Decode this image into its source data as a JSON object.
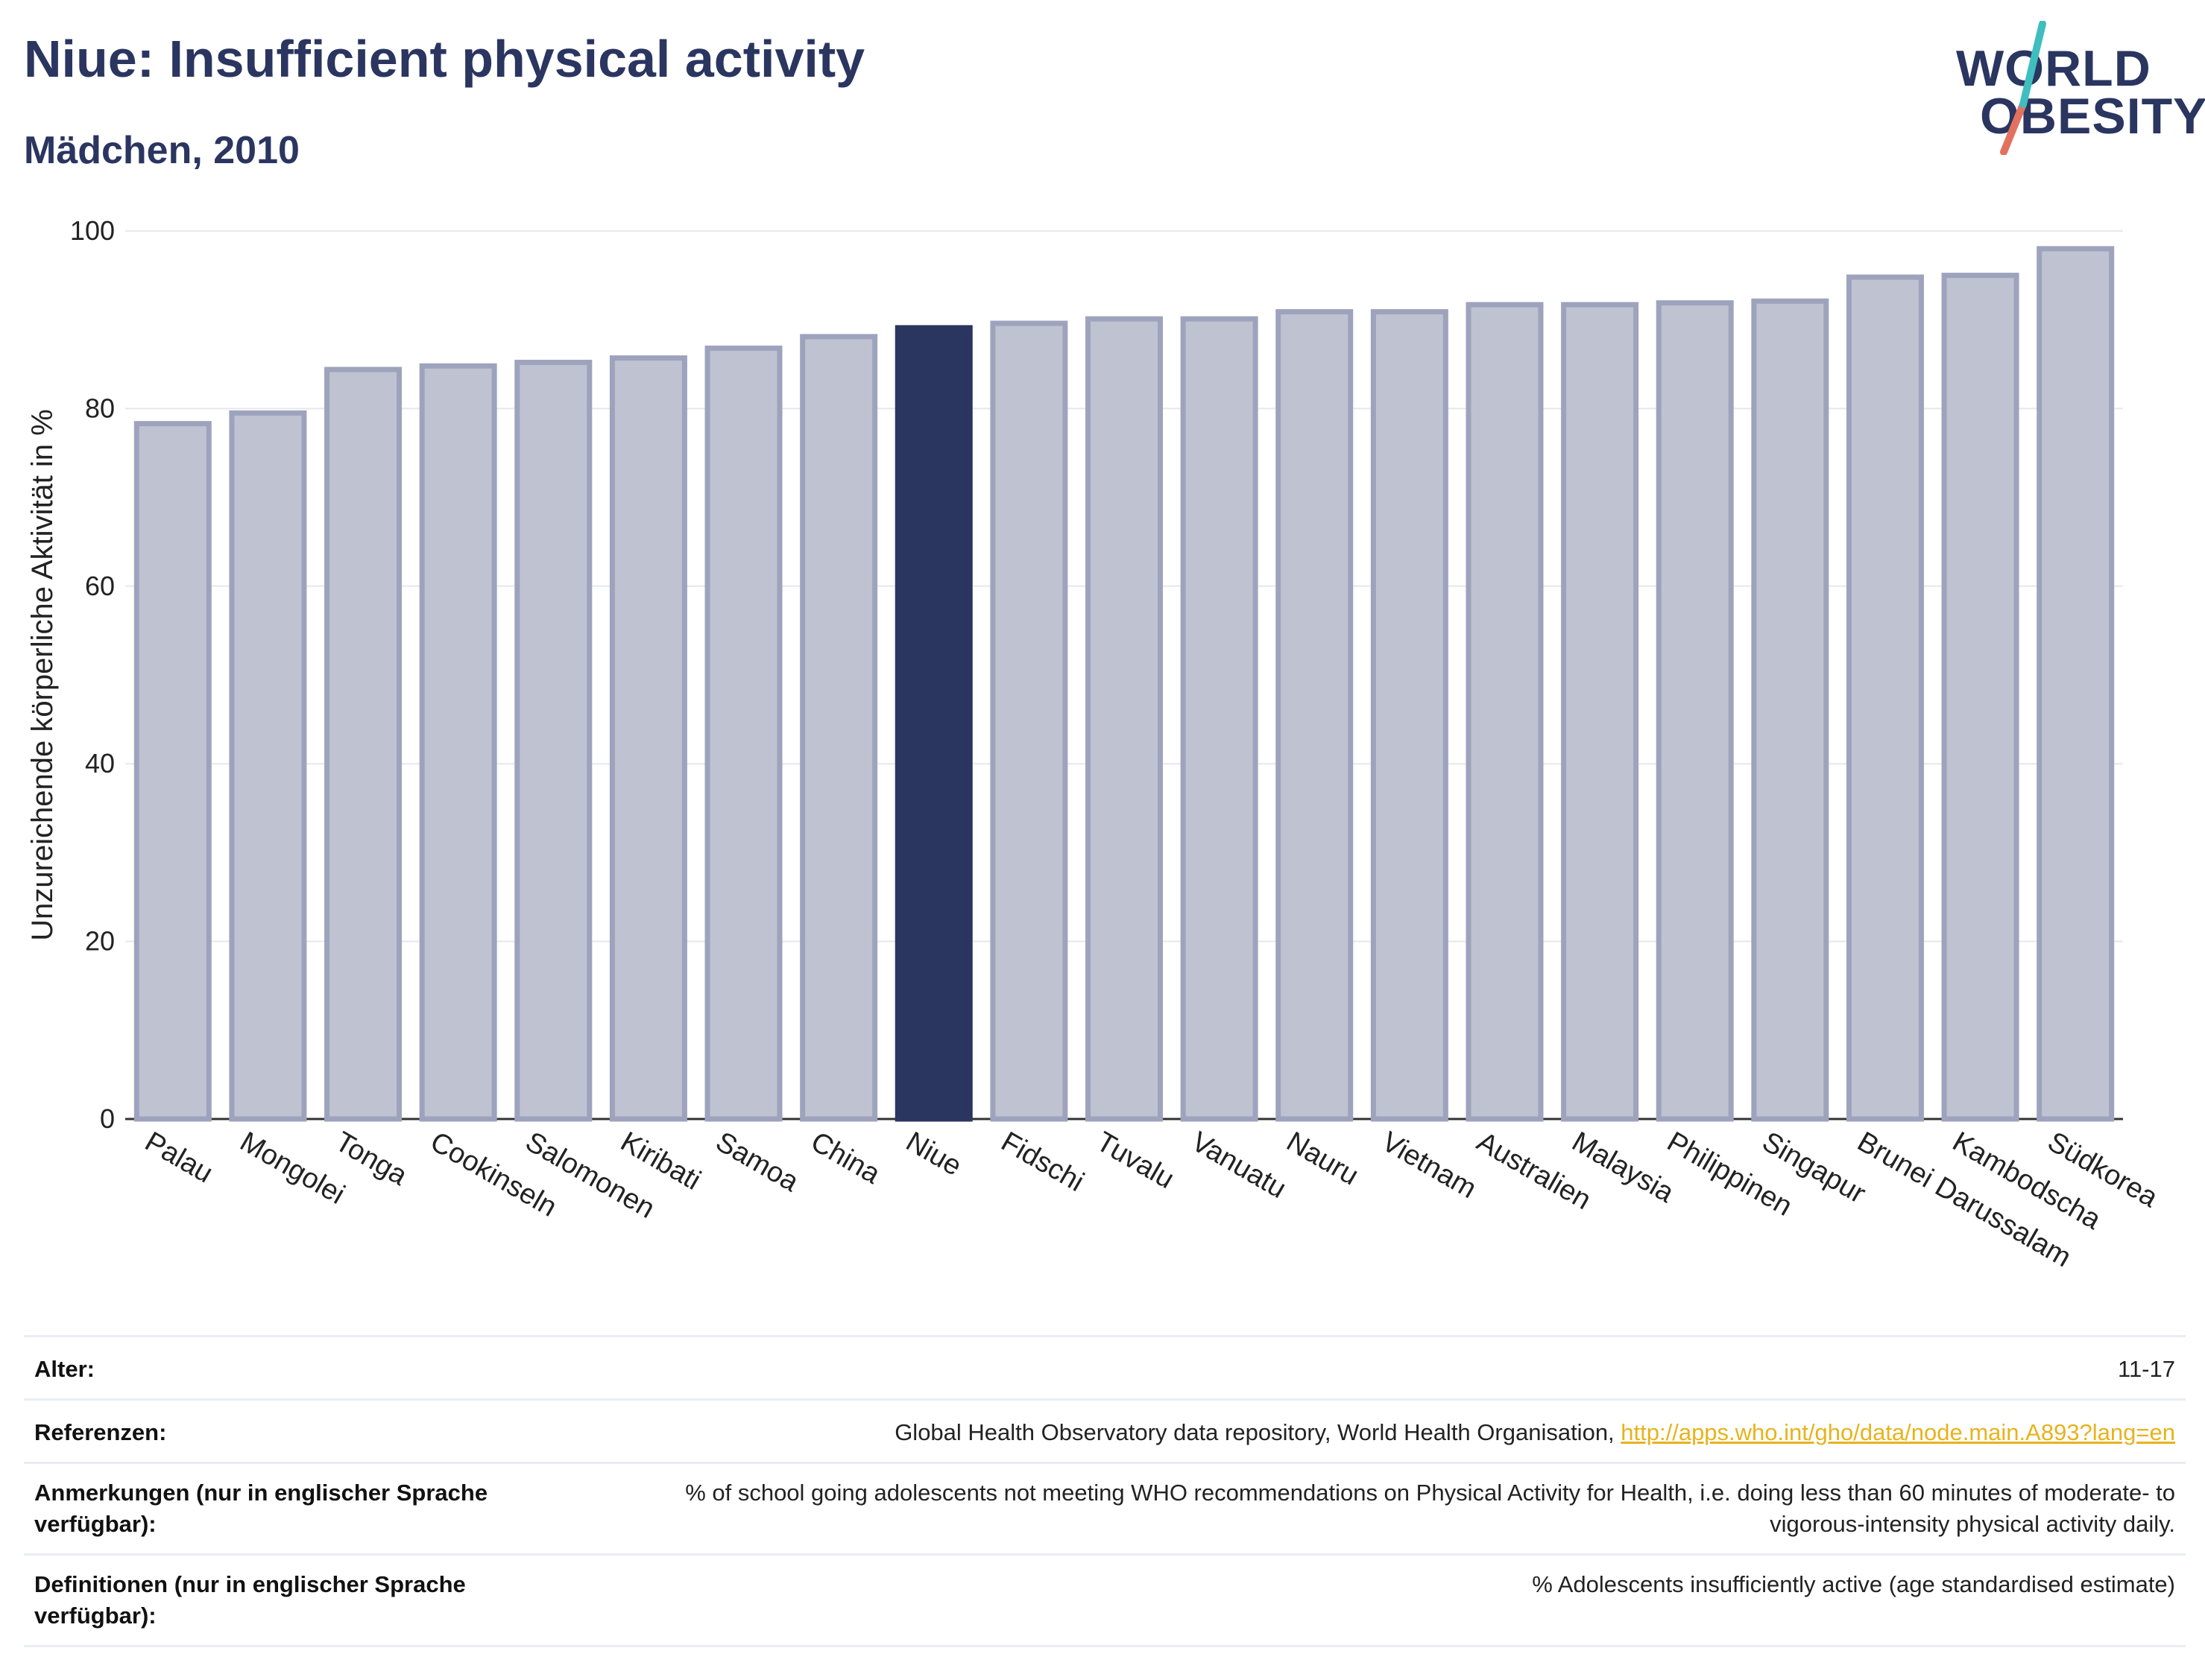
{
  "header": {
    "title": "Niue: Insufficient physical activity",
    "subtitle": "Mädchen, 2010"
  },
  "logo": {
    "line1": "WORLD",
    "line2": "OBESITY"
  },
  "colors": {
    "highlight": "#2a3560",
    "bar_fill": "#bfc2d0",
    "bar_stroke": "#9ea3bd",
    "accent_teal": "#3fbdbf",
    "accent_coral": "#e3715f",
    "link": "#e7b31c"
  },
  "chart_data": {
    "type": "bar",
    "title": "Niue: Insufficient physical activity",
    "subtitle": "Mädchen, 2010",
    "xlabel": "",
    "ylabel": "Unzureichende körperliche Aktivität in %",
    "ylim": [
      0,
      100
    ],
    "yticks": [
      0,
      20,
      40,
      60,
      80,
      100
    ],
    "grid": true,
    "highlight": "Niue",
    "categories": [
      "Palau",
      "Mongolei",
      "Tonga",
      "Cookinseln",
      "Salomonen",
      "Kiribati",
      "Samoa",
      "China",
      "Niue",
      "Fidschi",
      "Tuvalu",
      "Vanuatu",
      "Nauru",
      "Vietnam",
      "Australien",
      "Malaysia",
      "Philippinen",
      "Singapur",
      "Brunei Darussalam",
      "Kambodscha",
      "Südkorea"
    ],
    "values": [
      78.3,
      79.5,
      84.4,
      84.8,
      85.2,
      85.7,
      86.8,
      88.1,
      89.1,
      89.6,
      90.1,
      90.1,
      90.9,
      90.9,
      91.7,
      91.7,
      91.9,
      92.1,
      94.8,
      95.0,
      98.0
    ]
  },
  "footer": {
    "age_label": "Alter:",
    "age_value": "11-17",
    "ref_label": "Referenzen:",
    "ref_text": "Global Health Observatory data repository, World Health Organisation, ",
    "ref_link": "http://apps.who.int/gho/data/node.main.A893?lang=en",
    "notes_label": "Anmerkungen (nur in englischer Sprache verfügbar):",
    "notes_value": "% of school going adolescents not meeting WHO recommendations on Physical Activity for Health, i.e. doing less than 60 minutes of moderate- to vigorous-intensity physical activity daily.",
    "defs_label": "Definitionen (nur in englischer Sprache verfügbar):",
    "defs_value": "% Adolescents insufficiently active (age standardised estimate)"
  }
}
